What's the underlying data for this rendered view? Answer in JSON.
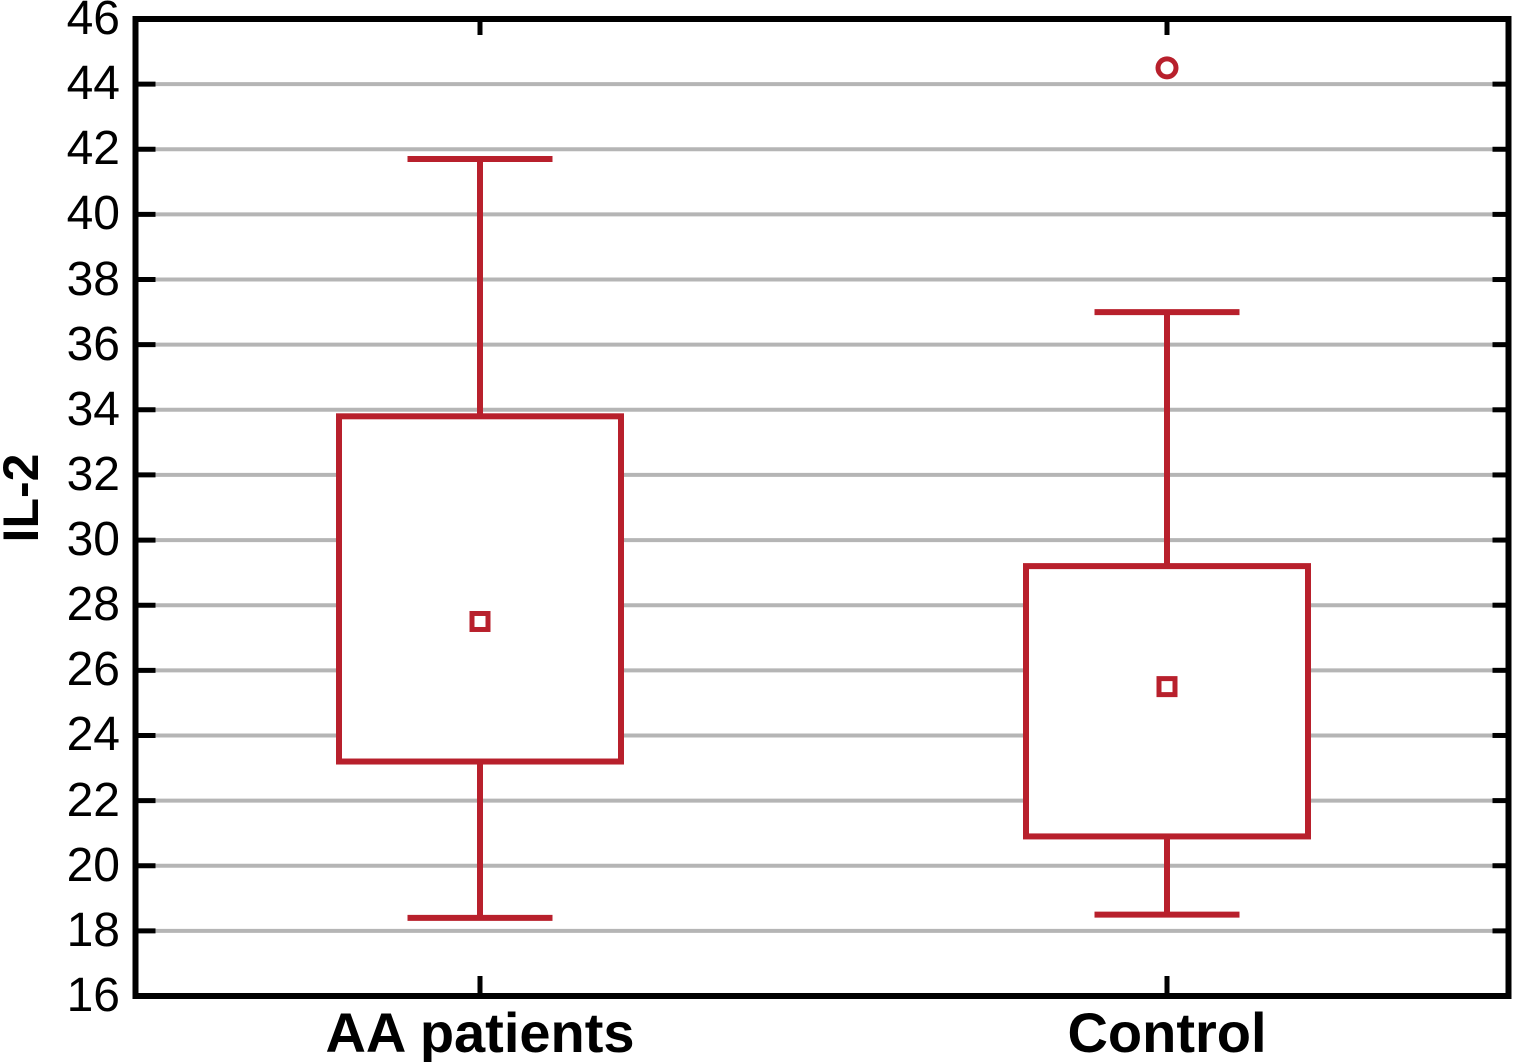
{
  "chart_data": {
    "type": "box",
    "title": "",
    "xlabel": "",
    "ylabel": "IL-2",
    "ylim": [
      16,
      46
    ],
    "ytick_step": 2,
    "yticks": [
      16,
      18,
      20,
      22,
      24,
      26,
      28,
      30,
      32,
      34,
      36,
      38,
      40,
      42,
      44,
      46
    ],
    "categories": [
      "AA patients",
      "Control"
    ],
    "series": [
      {
        "name": "AA patients",
        "whisker_low": 18.4,
        "q1": 23.2,
        "mean": 27.5,
        "q3": 33.8,
        "whisker_high": 41.7,
        "outliers": []
      },
      {
        "name": "Control",
        "whisker_low": 18.5,
        "q1": 20.9,
        "mean": 25.5,
        "q3": 29.2,
        "whisker_high": 37.0,
        "outliers": [
          44.5
        ]
      }
    ],
    "markers": {
      "mean": "open-square",
      "outlier": "open-circle"
    },
    "colors": {
      "series": "#b8202c",
      "grid": "#b5b5b5",
      "axis": "#000000",
      "background": "#ffffff"
    },
    "grid": true,
    "legend": false
  }
}
